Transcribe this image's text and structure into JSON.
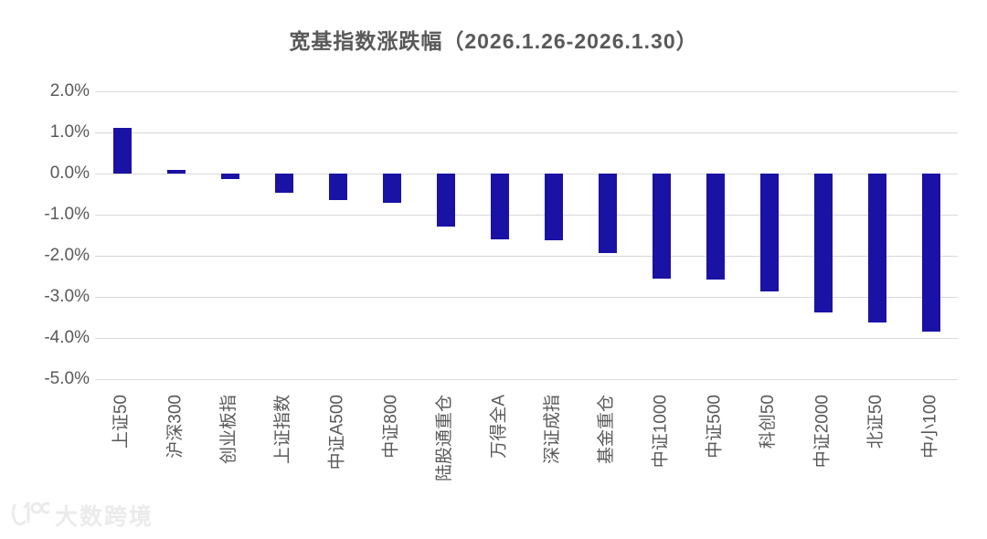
{
  "chart_data": {
    "type": "bar",
    "title": "宽基指数涨跌幅（2026.1.26-2026.1.30）",
    "categories": [
      "上证50",
      "沪深300",
      "创业板指",
      "上证指数",
      "中证A500",
      "中证800",
      "陆股通重仓",
      "万得全A",
      "深证成指",
      "基金重仓",
      "中证1000",
      "中证500",
      "科创50",
      "中证2000",
      "北证50",
      "中小100"
    ],
    "values": [
      1.12,
      0.1,
      -0.13,
      -0.47,
      -0.65,
      -0.72,
      -1.28,
      -1.61,
      -1.63,
      -1.93,
      -2.55,
      -2.57,
      -2.87,
      -3.37,
      -3.63,
      -3.84
    ],
    "unit": "%",
    "xlabel": "",
    "ylabel": "",
    "ylim": [
      -5.0,
      2.0
    ],
    "yticks": [
      2.0,
      1.0,
      0.0,
      -1.0,
      -2.0,
      -3.0,
      -4.0,
      -5.0
    ],
    "ytick_labels": [
      "2.0%",
      "1.0%",
      "0.0%",
      "-1.0%",
      "-2.0%",
      "-3.0%",
      "-4.0%",
      "-5.0%"
    ],
    "grid": true,
    "legend_position": "none",
    "bar_color": "#1a12a4",
    "grid_color": "#d9d9d9",
    "text_color": "#595959"
  },
  "watermark": {
    "logo": "dashu-kuajing-100-smile-logo",
    "text": "大数跨境"
  }
}
